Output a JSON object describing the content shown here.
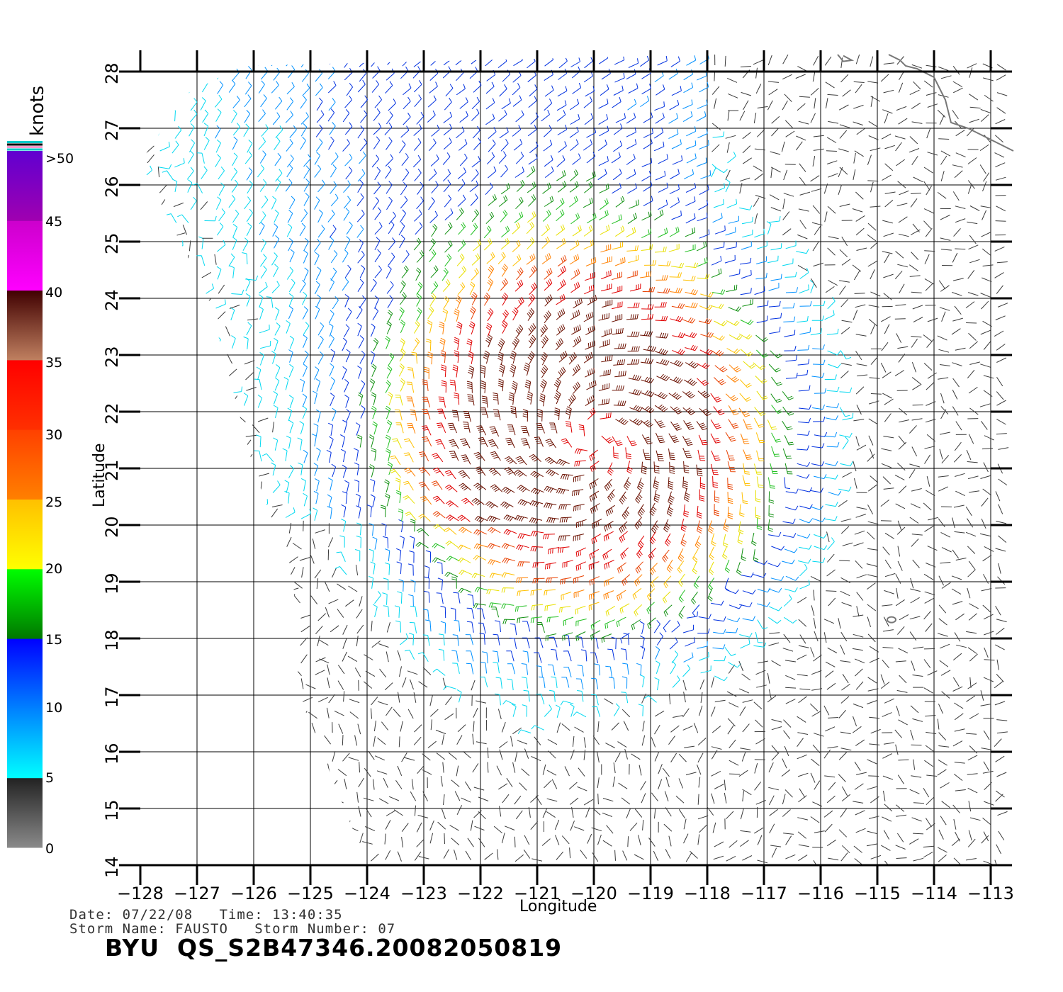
{
  "chart_data": {
    "type": "wind-barb-map",
    "xlabel": "Longitude",
    "ylabel": "Latitude",
    "xlim": [
      -128,
      -112.6
    ],
    "ylim": [
      14,
      28
    ],
    "x_ticks": [
      -128,
      -127,
      -126,
      -125,
      -124,
      -123,
      -122,
      -121,
      -120,
      -119,
      -118,
      -117,
      -116,
      -115,
      -114,
      -113
    ],
    "x_tick_labels": [
      "−128",
      "−127",
      "−126",
      "−125",
      "−124",
      "−123",
      "−122",
      "−121",
      "−120",
      "−119",
      "−118",
      "−117",
      "−116",
      "−115",
      "−114",
      "−113"
    ],
    "y_ticks": [
      14,
      15,
      16,
      17,
      18,
      19,
      20,
      21,
      22,
      23,
      24,
      25,
      26,
      27,
      28
    ],
    "y_tick_labels": [
      "14",
      "15",
      "16",
      "17",
      "18",
      "19",
      "20",
      "21",
      "22",
      "23",
      "24",
      "25",
      "26",
      "27",
      "28"
    ],
    "grid": true,
    "storm_center": {
      "lon": -120.0,
      "lat": 21.5
    },
    "colorbar": {
      "unit": "knots",
      "tick_labels": [
        ">50",
        "45",
        "40",
        "35",
        "30",
        "25",
        "20",
        "15",
        "10",
        "5",
        "0"
      ],
      "bands": [
        {
          "min": 0,
          "max": 5,
          "colors": [
            "#8a8a8a",
            "#222222"
          ]
        },
        {
          "min": 5,
          "max": 10,
          "colors": [
            "#00ffff",
            "#0080ff"
          ]
        },
        {
          "min": 10,
          "max": 15,
          "colors": [
            "#0080ff",
            "#0000ff"
          ]
        },
        {
          "min": 15,
          "max": 20,
          "colors": [
            "#007700",
            "#00ff00"
          ]
        },
        {
          "min": 20,
          "max": 25,
          "colors": [
            "#ffff00",
            "#ffc000"
          ]
        },
        {
          "min": 25,
          "max": 30,
          "colors": [
            "#ff8000",
            "#ff4000"
          ]
        },
        {
          "min": 30,
          "max": 35,
          "colors": [
            "#ff3000",
            "#ff0000"
          ]
        },
        {
          "min": 35,
          "max": 40,
          "colors": [
            "#c08060",
            "#400000"
          ]
        },
        {
          "min": 40,
          "max": 45,
          "colors": [
            "#ff00ff",
            "#cc00cc"
          ]
        },
        {
          "min": 45,
          "max": 50,
          "colors": [
            "#a000b0",
            "#6000d0"
          ]
        }
      ]
    },
    "coastline_color": "#777777",
    "grid_color": "#000000"
  },
  "footer": {
    "date_line": "Date: 07/22/08   Time: 13:40:35",
    "storm_line": "Storm Name: FAUSTO   Storm Number: 07",
    "file_label": "BYU  QS_S2B47346.20082050819"
  }
}
